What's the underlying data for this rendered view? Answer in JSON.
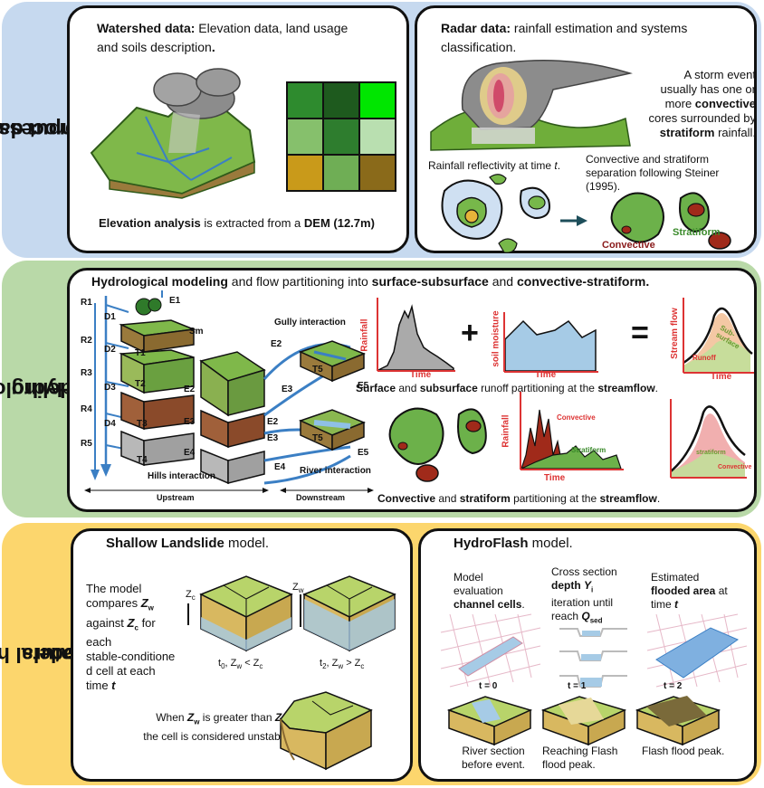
{
  "bands": {
    "input": {
      "label_line1": "Input data and",
      "label_line2": "pre-process",
      "color": "#c6d9ef"
    },
    "hydro": {
      "label_line1": "Hydrological",
      "label_line2": "modeling",
      "color": "#b9d9a8"
    },
    "hazard": {
      "label_line1": "Natural hazards",
      "label_line2": "models",
      "color": "#fcd66d"
    }
  },
  "watershed": {
    "title_bold": "Watershed data:",
    "title_rest": " Elevation data, land usage",
    "title_line2": "and soils description",
    "title_dot": ".",
    "caption_bold1": "Elevation analysis",
    "caption_mid": " is extracted from a ",
    "caption_bold2": "DEM (12.7m)",
    "grid_colors": [
      "#2e8b2e",
      "#1e5a1e",
      "#00e600",
      "#86c06c",
      "#2e7d2e",
      "#b9dfb0",
      "#c99a1a",
      "#6fae55",
      "#8a6a1a"
    ]
  },
  "radar": {
    "title_bold": "Radar data:",
    "title_rest": " rainfall estimation and systems",
    "title_line2": "classification.",
    "storm_l1": "A storm event",
    "storm_l2": "usually has one or",
    "storm_l3_pre": "more ",
    "storm_l3_bold": "convective",
    "storm_l4": "cores surrounded by",
    "storm_l5_bold": "stratiform",
    "storm_l5_post": " rainfall.",
    "reflect_pre": "Rainfall reflectivity at time ",
    "reflect_t": "t",
    "reflect_dot": ".",
    "sep_l1": "Convective and stratiform",
    "sep_l2": "separation following Steiner",
    "sep_l3": "(1995).",
    "label_stratiform": "Stratiform",
    "label_convective": "Convective"
  },
  "hydro": {
    "title_b1": "Hydrological modeling",
    "title_m1": " and flow partitioning into ",
    "title_b2": "surface-subsurface",
    "title_m2": " and ",
    "title_b3": "convective-stratiform",
    "title_end": ".",
    "r_labels": [
      "R1",
      "R2",
      "R3",
      "R4",
      "R5"
    ],
    "d_labels": [
      "D1",
      "D2",
      "D3",
      "D4"
    ],
    "t_labels": [
      "T1",
      "T2",
      "T3",
      "T4"
    ],
    "e_labels_left": [
      "E1",
      "E2",
      "E3",
      "E4"
    ],
    "sm": "Sm",
    "hills": "Hills interaction",
    "upstream": "Upstream",
    "downstream": "Downstream",
    "gully": "Gully interaction",
    "river": "River interaction",
    "gully_labels": {
      "e2": "E2",
      "e3": "E3",
      "t5": "T5",
      "e5": "E5"
    },
    "river_labels": {
      "e2": "E2",
      "e3": "E3",
      "e4": "E4",
      "t5": "T5",
      "e5": "E5"
    },
    "rainfall": "Rainfall",
    "soil_moisture": "soil moisture",
    "stream_flow": "Stream flow",
    "time": "Time",
    "plus": "+",
    "equals": "=",
    "runoff": "Runoff",
    "sub_surface": "Sub-surface",
    "caption1_b1": "Surface",
    "caption1_m1": " and ",
    "caption1_b2": "subsurface",
    "caption1_m2": " runoff partitioning at the ",
    "caption1_b3": "streamflow",
    "caption1_end": ".",
    "convective": "Convective",
    "stratiform": "Stratiform",
    "stratiform_small": "stratiform",
    "convective_small": "Convective",
    "caption2_b1": "Convective",
    "caption2_m1": " and ",
    "caption2_b2": "stratiform",
    "caption2_m2": " partitioning at the ",
    "caption2_b3": "streamflow",
    "caption2_end": "."
  },
  "landslide": {
    "title_bold": "Shallow Landslide",
    "title_rest": " model.",
    "desc_l1": "The model",
    "desc_l2_pre": "compares ",
    "zw": "Z",
    "w": "w",
    "desc_l3_pre": "against ",
    "zc": "Z",
    "c": "c",
    "desc_l3_post": " for",
    "desc_l4": "each",
    "desc_l5": "stable-conditione",
    "desc_l6": "d cell at each",
    "desc_l7_pre": "time ",
    "desc_l7_t": "t",
    "zc_label": "Z",
    "zw_label": "Z",
    "cond1_t": "t",
    "cond1_sub": "0",
    "cond1_rest": ", Z",
    "cond1_op": " < Z",
    "cond2_t": "t",
    "cond2_sub": "2",
    "cond2_rest": ", Z",
    "cond2_op": " > Z",
    "unstable_l1_pre": "When ",
    "unstable_l1_mid": " is greater than ",
    "unstable_l1_end": ",",
    "unstable_l2": "the cell is considered unstable"
  },
  "hydroflash": {
    "title_bold": "HydroFlash",
    "title_rest": " model.",
    "c1_l1": "Model",
    "c1_l2": "evaluation",
    "c1_l3": "channel cells",
    "c1_dot": ".",
    "c2_l1": "Cross section",
    "c2_l2_bold": "depth ",
    "c2_y": "Y",
    "c2_ysub": "i",
    "c2_l3": "iteration until",
    "c2_l4_pre": "reach ",
    "c2_q": "Q",
    "c2_qsub": "sed",
    "c3_l1": "Estimated",
    "c3_l2": "flooded area",
    "c3_l2_post": " at",
    "c3_l3_pre": "time ",
    "c3_t": "t",
    "t0": "t = 0",
    "t1": "t = 1",
    "t2": "t = 2",
    "cap1_l1": "River section",
    "cap1_l2": "before event.",
    "cap2_l1": "Reaching Flash",
    "cap2_l2": "flood peak.",
    "cap3_l1": "Flash flood peak."
  }
}
